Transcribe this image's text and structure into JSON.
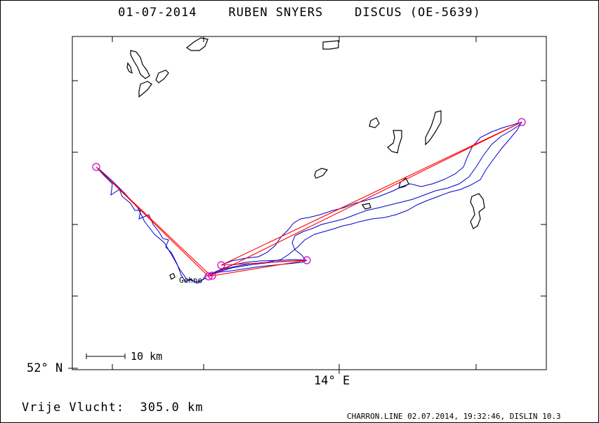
{
  "title": "01-07-2014    RUBEN SNYERS    DISCUS (OE-5639)",
  "axes": {
    "lat_label": "52° N",
    "lon_label": "14° E"
  },
  "scale_bar": {
    "label": "10 km",
    "length_km": 10
  },
  "place_label": "Gehne",
  "distance": {
    "label": "Vrije Vlucht:",
    "value": "305.0 km"
  },
  "footer": "CHARRON.LINE 02.07.2014, 19:32:46, DISLIN 10.3",
  "colors": {
    "track": "#0000cc",
    "task_legs": "#ff0000",
    "turnpoints": "#cc00cc",
    "outline": "#000000"
  }
}
